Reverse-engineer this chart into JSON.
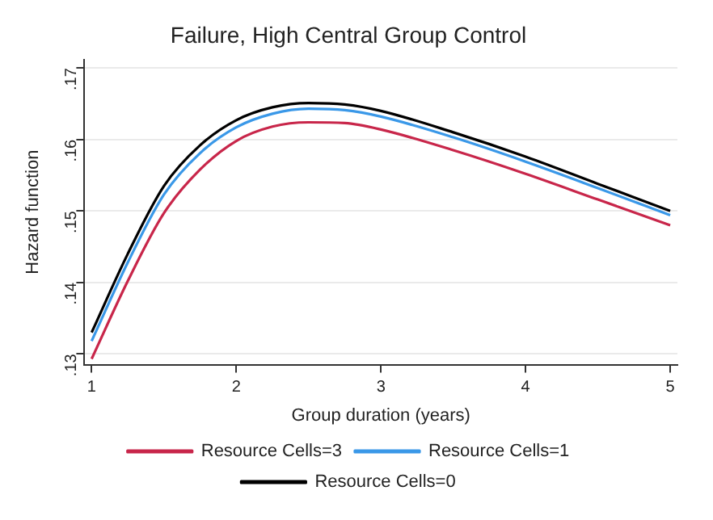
{
  "chart_data": {
    "type": "line",
    "title": "Failure, High Central Group Control",
    "xlabel": "Group duration (years)",
    "ylabel": "Hazard function",
    "x": [
      1,
      1.25,
      1.5,
      1.75,
      2,
      2.25,
      2.5,
      2.75,
      3,
      3.5,
      4,
      4.5,
      5
    ],
    "series": [
      {
        "name": "Resource Cells=3",
        "color": "#c8264a",
        "values": [
          0.1293,
          0.1402,
          0.1497,
          0.1558,
          0.1598,
          0.1618,
          0.1624,
          0.1623,
          0.1614,
          0.1585,
          0.1552,
          0.1516,
          0.148
        ]
      },
      {
        "name": "Resource Cells=1",
        "color": "#3a98e8",
        "values": [
          0.1318,
          0.1428,
          0.1523,
          0.1581,
          0.1617,
          0.1636,
          0.1643,
          0.1641,
          0.1632,
          0.1603,
          0.1569,
          0.1532,
          0.1494
        ]
      },
      {
        "name": "Resource Cells=0",
        "color": "#000000",
        "values": [
          0.133,
          0.144,
          0.1535,
          0.1592,
          0.1627,
          0.1645,
          0.1651,
          0.1649,
          0.164,
          0.161,
          0.1576,
          0.1538,
          0.15
        ]
      }
    ],
    "xlim": [
      0.95,
      5.05
    ],
    "xticks": [
      1,
      2,
      3,
      4,
      5
    ],
    "ylim": [
      0.1285,
      0.1712
    ],
    "yticks": [
      {
        "value": 0.13,
        "label": ".13"
      },
      {
        "value": 0.14,
        "label": ".14"
      },
      {
        "value": 0.15,
        "label": ".15"
      },
      {
        "value": 0.16,
        "label": ".16"
      },
      {
        "value": 0.17,
        "label": ".17"
      }
    ],
    "grid": "y",
    "legend": "bottom",
    "marker": "none",
    "line_style": "solid"
  }
}
